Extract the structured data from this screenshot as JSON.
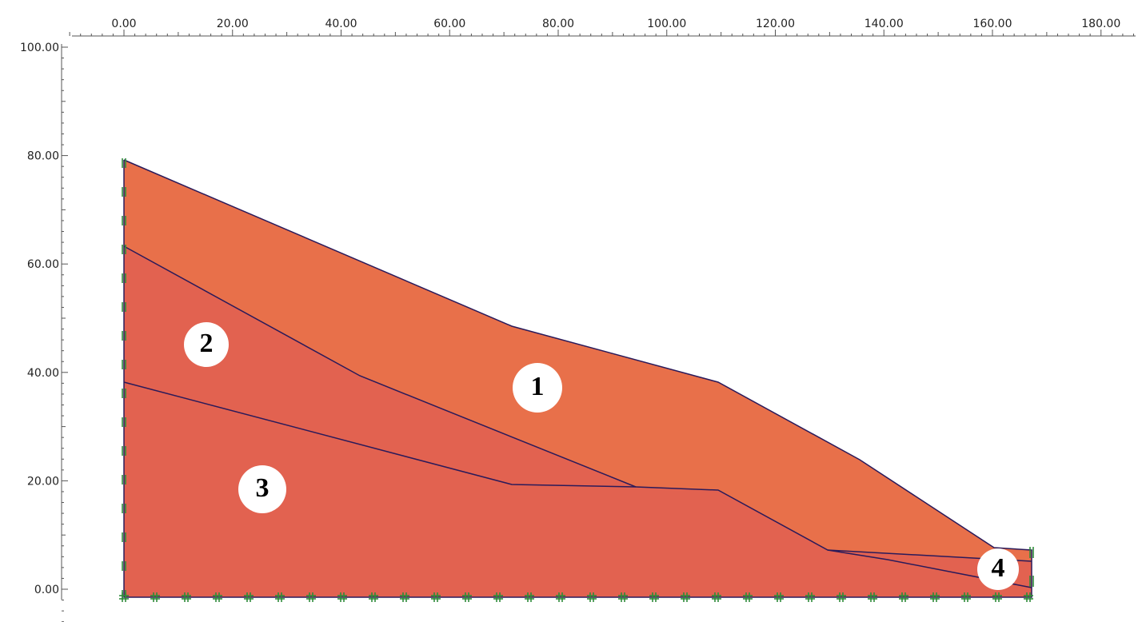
{
  "x_axis": {
    "labels": [
      "0.00",
      "20.00",
      "40.00",
      "60.00",
      "80.00",
      "100.00",
      "120.00",
      "140.00",
      "160.00",
      "180.00"
    ]
  },
  "y_axis": {
    "labels": [
      "100.00",
      "80.00",
      "60.00",
      "40.00",
      "20.00",
      "0.00"
    ]
  },
  "regions": [
    {
      "label": "1"
    },
    {
      "label": "2"
    },
    {
      "label": "3"
    },
    {
      "label": "4"
    }
  ]
}
